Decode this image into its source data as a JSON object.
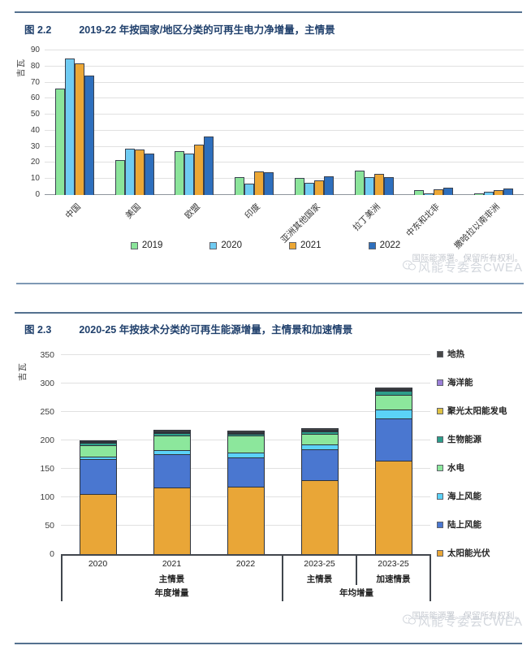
{
  "figure1": {
    "number": "图 2.2",
    "title": "2019-22 年按国家/地区分类的可再生电力净增量，主情景",
    "y_unit": "吉瓦",
    "source": "国际能源署。保留所有权利。",
    "watermark": "风能专委会CWEA"
  },
  "figure2": {
    "number": "图 2.3",
    "title": "2020-25 年按技术分类的可再生能源增量，主情景和加速情景",
    "y_unit": "吉瓦",
    "source": "国际能源署。保留所有权利。",
    "watermark": "风能专委会CWEA",
    "axis_groups": {
      "years": [
        "2020",
        "2021",
        "2022",
        "2023-25",
        "2023-25"
      ],
      "scenario_annual": "主情景",
      "scenario_main": "主情景",
      "scenario_accel": "加速情景",
      "label_annual": "年度增量",
      "label_average": "年均增量"
    }
  },
  "chart_data": [
    {
      "type": "bar",
      "title": "2019-22 年按国家/地区分类的可再生电力净增量，主情景",
      "ylabel": "吉瓦",
      "ylim": [
        0,
        90
      ],
      "ytick_step": 10,
      "grid": true,
      "legend_position": "bottom",
      "categories": [
        "中国",
        "美国",
        "欧盟",
        "印度",
        "亚洲其他国家",
        "拉丁美洲",
        "中东和北非",
        "撒哈拉以南非洲"
      ],
      "series": [
        {
          "name": "2019",
          "color": "#8be49a",
          "values": [
            66,
            22,
            27.5,
            11,
            10.5,
            15,
            3,
            1
          ]
        },
        {
          "name": "2020",
          "color": "#6fcbf2",
          "values": [
            85,
            29,
            26,
            7,
            7.5,
            11,
            1,
            2
          ]
        },
        {
          "name": "2021",
          "color": "#eca735",
          "values": [
            82,
            28.5,
            31.5,
            14.5,
            9,
            13,
            3.5,
            3
          ]
        },
        {
          "name": "2022",
          "color": "#2e6fbd",
          "values": [
            74.5,
            26,
            36.5,
            14,
            11.5,
            11,
            4.5,
            4
          ]
        }
      ]
    },
    {
      "type": "bar",
      "stacked": true,
      "title": "2020-25 年按技术分类的可再生能源增量，主情景和加速情景",
      "ylabel": "吉瓦",
      "ylim": [
        0,
        350
      ],
      "ytick_step": 50,
      "grid": true,
      "legend_position": "right",
      "categories": [
        "2020",
        "2021",
        "2022",
        "2023-25 主情景",
        "2023-25 加速情景"
      ],
      "series": [
        {
          "name": "太阳能光伏",
          "color": "#e9a637",
          "values": [
            106,
            117,
            118,
            130,
            165
          ]
        },
        {
          "name": "陆上风能",
          "color": "#4a77d0",
          "values": [
            61,
            59,
            52,
            54,
            74
          ]
        },
        {
          "name": "海上风能",
          "color": "#5bd2f7",
          "values": [
            5,
            7,
            8,
            9,
            15
          ]
        },
        {
          "name": "水电",
          "color": "#8ce79c",
          "values": [
            19,
            26,
            30,
            18,
            26
          ]
        },
        {
          "name": "生物能源",
          "color": "#2d9e8a",
          "values": [
            5,
            4,
            4,
            5,
            7
          ]
        },
        {
          "name": "聚光太阳能发电",
          "color": "#dfc243",
          "values": [
            0.5,
            1,
            1,
            1.5,
            2
          ]
        },
        {
          "name": "海洋能",
          "color": "#9b7fd8",
          "values": [
            0.3,
            0.5,
            0.5,
            0.5,
            1
          ]
        },
        {
          "name": "地热",
          "color": "#474747",
          "values": [
            1.5,
            2.5,
            2,
            2,
            3
          ]
        }
      ]
    }
  ]
}
